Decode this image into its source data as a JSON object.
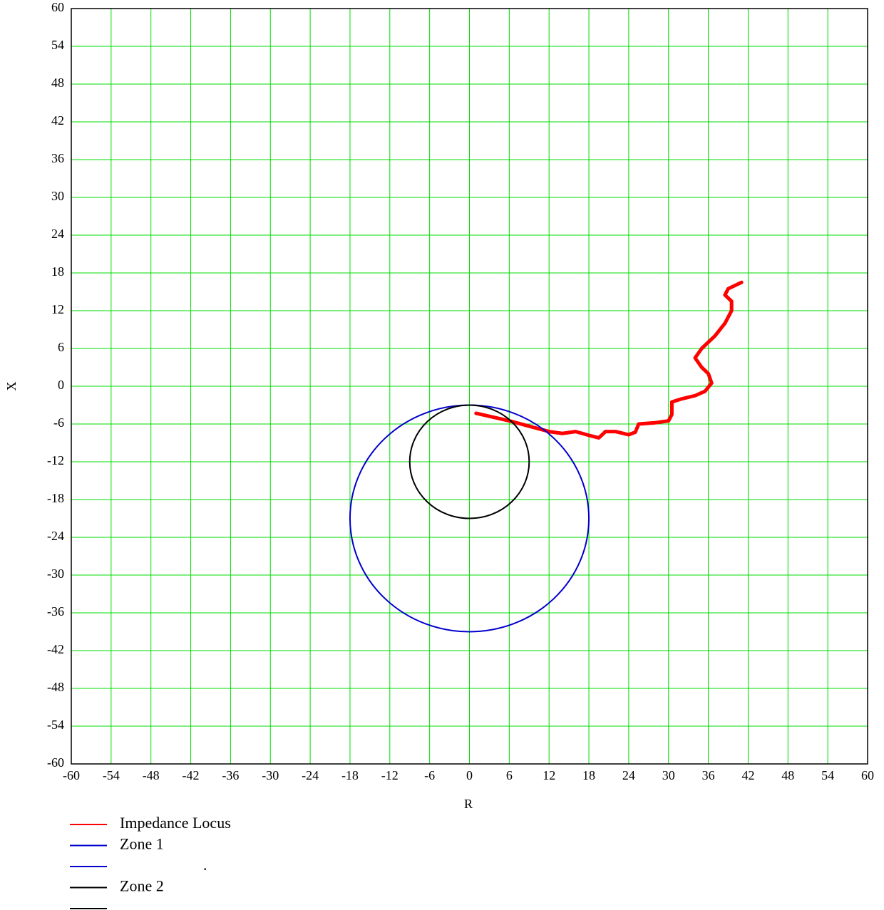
{
  "chart_data": {
    "type": "scatter",
    "x_label": "R",
    "y_label": "X",
    "xlim": [
      -60,
      60
    ],
    "ylim": [
      -60,
      60
    ],
    "xticks": [
      -60,
      -54,
      -48,
      -42,
      -36,
      -30,
      -24,
      -18,
      -12,
      -6,
      0,
      6,
      12,
      18,
      24,
      30,
      36,
      42,
      48,
      54,
      60
    ],
    "yticks": [
      -60,
      -54,
      -48,
      -42,
      -36,
      -30,
      -24,
      -18,
      -12,
      -6,
      0,
      6,
      12,
      18,
      24,
      30,
      36,
      42,
      48,
      54,
      60
    ],
    "grid": true,
    "grid_color": "#00dd00",
    "series": [
      {
        "name": "Impedance Locus",
        "color": "#ff0000",
        "kind": "line",
        "x": [
          1,
          6,
          12,
          14,
          16,
          18,
          19.5,
          20.5,
          22,
          24,
          25,
          25.5,
          28,
          30,
          30.5,
          30.5,
          32,
          34,
          35.5,
          36.5,
          36,
          35,
          34,
          35,
          37,
          38.5,
          39.5,
          39.5,
          38.5,
          39,
          41
        ],
        "y": [
          -4.3,
          -5.5,
          -7.2,
          -7.5,
          -7.2,
          -7.8,
          -8.2,
          -7.2,
          -7.2,
          -7.7,
          -7.3,
          -6,
          -5.8,
          -5.5,
          -4.5,
          -2.5,
          -2,
          -1.5,
          -0.8,
          0.5,
          2,
          3,
          4.5,
          6,
          8,
          10,
          12,
          13.5,
          14.5,
          15.5,
          16.5
        ]
      },
      {
        "name": "Zone 1",
        "color": "#0000cc",
        "kind": "circle",
        "center": [
          0,
          -21
        ],
        "radius": 18
      },
      {
        "name": ".",
        "color": "#0000cc"
      },
      {
        "name": "Zone 2",
        "color": "#000000",
        "kind": "circle",
        "center": [
          0,
          -12
        ],
        "radius": 9
      },
      {
        "color": "#000000"
      }
    ]
  }
}
